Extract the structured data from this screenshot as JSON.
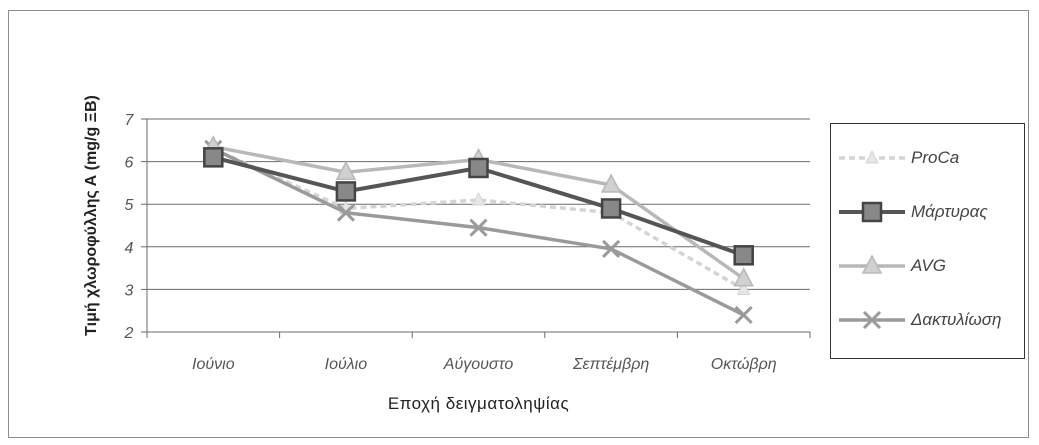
{
  "chart_data": {
    "type": "line",
    "title": "",
    "xlabel": "Εποχή δειγματοληψίας",
    "ylabel": "Τιμή χλωροφύλλης Α (mg/g ΞΒ)",
    "categories": [
      "Ιούνιο",
      "Ιούλιο",
      "Αύγουστο",
      "Σεπτέμβρη",
      "Οκτώβρη"
    ],
    "ylim": [
      2,
      7
    ],
    "yticks": [
      "2",
      "3",
      "4",
      "5",
      "6",
      "7"
    ],
    "grid": "horizontal",
    "legend_position": "right",
    "series": [
      {
        "name": "ProCa",
        "values": [
          6.3,
          4.9,
          5.1,
          4.8,
          3.0
        ],
        "color": "#d4d4d4",
        "marker": "triangle-small",
        "dash": "6,4"
      },
      {
        "name": "Μάρτυρας",
        "values": [
          6.1,
          5.3,
          5.85,
          4.9,
          3.8
        ],
        "color": "#555555",
        "marker": "square",
        "dash": ""
      },
      {
        "name": "AVG",
        "values": [
          6.35,
          5.75,
          6.05,
          5.45,
          3.25
        ],
        "color": "#b8b8b8",
        "marker": "triangle",
        "dash": ""
      },
      {
        "name": "Δακτυλίωση",
        "values": [
          6.3,
          4.8,
          4.45,
          3.95,
          2.4
        ],
        "color": "#9a9a9a",
        "marker": "x",
        "dash": ""
      }
    ]
  }
}
